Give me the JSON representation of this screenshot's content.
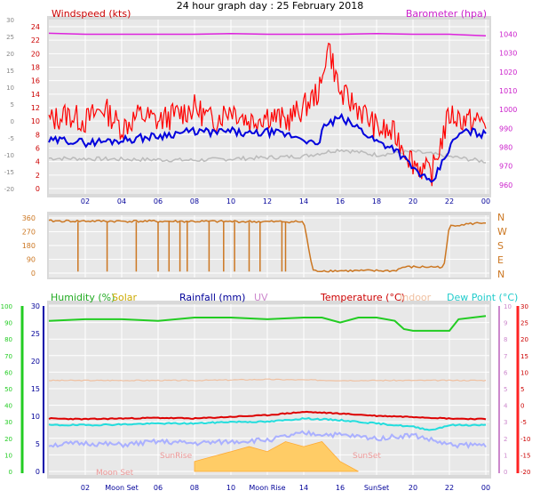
{
  "title": "24 hour graph day : 25 February 2018",
  "colors": {
    "windspeed": "#ff0000",
    "windavg": "#0000dd",
    "gust_bg": "#bbbbbb",
    "barometer": "#dd22dd",
    "direction": "#cc7722",
    "humidity": "#22cc22",
    "solar": "#ddbb00",
    "rainfall": "#0000aa",
    "uv": "#cc88cc",
    "temperature": "#dd0000",
    "indoor": "#f0c0a0",
    "dewpoint": "#22dddd",
    "uv_line": "#aab0ff",
    "plot_bg": "#e6e6e6"
  },
  "chart_data": [
    {
      "type": "line",
      "panel": "wind",
      "left_axis_label": "Windspeed (kts)",
      "right_axis_label": "Barometer (hpa)",
      "x_ticks": [
        "02",
        "04",
        "06",
        "08",
        "10",
        "12",
        "14",
        "16",
        "18",
        "20",
        "22",
        "00"
      ],
      "x_range": [
        0,
        24
      ],
      "y_left_ticks": [
        "0",
        "2",
        "4",
        "6",
        "8",
        "10",
        "12",
        "14",
        "16",
        "18",
        "20",
        "22",
        "24"
      ],
      "y_left_ticks_alt": [
        "-20",
        "-15",
        "-10",
        "-5",
        "0",
        "5",
        "10",
        "15",
        "20",
        "25",
        "30"
      ],
      "y_left_range": [
        0,
        24
      ],
      "y_right_ticks": [
        "960",
        "970",
        "980",
        "990",
        "1000",
        "1010",
        "1020",
        "1030",
        "1040"
      ],
      "y_right_range": [
        958,
        1044
      ],
      "series": [
        {
          "key": "windspeed",
          "x": [
            0,
            1,
            2,
            3,
            4,
            5,
            6,
            7,
            8,
            9,
            10,
            11,
            12,
            13,
            14,
            15,
            15.3,
            16,
            17,
            18,
            19,
            20,
            21,
            22,
            23,
            24
          ],
          "y": [
            10,
            11,
            10,
            12,
            9,
            11,
            10,
            11,
            12,
            10,
            12,
            10,
            11,
            10,
            12,
            15,
            22,
            14,
            12,
            9,
            8,
            4,
            2,
            11,
            10,
            10
          ]
        },
        {
          "key": "windavg",
          "x": [
            0,
            1,
            2,
            3,
            4,
            5,
            6,
            7,
            8,
            9,
            10,
            11,
            12,
            13,
            14,
            14.8,
            15,
            16,
            17,
            18,
            19,
            20,
            20.5,
            21,
            22,
            22.5,
            23,
            24
          ],
          "y": [
            7,
            7.2,
            6.8,
            7,
            7.2,
            7.5,
            7.8,
            8.2,
            8.5,
            8.3,
            8.5,
            8,
            8.4,
            8,
            7.5,
            6,
            9,
            10.5,
            9,
            7,
            6,
            3,
            2,
            0.5,
            6,
            8,
            8.5,
            8
          ]
        },
        {
          "key": "barometer",
          "x": [
            0,
            2,
            4,
            6,
            8,
            10,
            12,
            14,
            16,
            18,
            20,
            22,
            24
          ],
          "y": [
            1040.5,
            1040,
            1040,
            1040,
            1040,
            1040.3,
            1040,
            1040,
            1040,
            1040.3,
            1040,
            1040,
            1039.2
          ]
        }
      ]
    },
    {
      "type": "line",
      "panel": "direction",
      "y_ticks": [
        "0",
        "90",
        "180",
        "270",
        "360"
      ],
      "y_range": [
        0,
        360
      ],
      "compass_labels": [
        "N",
        "W",
        "S",
        "E",
        "N"
      ],
      "series": [
        {
          "key": "direction",
          "x": [
            0,
            14,
            14.5,
            19,
            19.5,
            21.7,
            22,
            24
          ],
          "y": [
            340,
            335,
            15,
            15,
            40,
            40,
            310,
            330
          ]
        }
      ]
    },
    {
      "type": "line",
      "panel": "temperature",
      "labels": {
        "humidity": "Humidity  (%)",
        "solar": "Solar",
        "rainfall": "Rainfall (mm)",
        "uv": "UV",
        "temperature": "Temperature (°C)",
        "indoor": "Indoor",
        "dewpoint": "Dew Point (°C)"
      },
      "y_humidity_ticks": [
        "0",
        "10",
        "20",
        "30",
        "40",
        "50",
        "60",
        "70",
        "80",
        "90",
        "100"
      ],
      "y_rain_ticks": [
        "0",
        "5",
        "10",
        "15",
        "20",
        "25",
        "30"
      ],
      "y_uv_ticks": [
        "0",
        "1",
        "2",
        "3",
        "4",
        "5",
        "6",
        "7",
        "8",
        "9",
        "10"
      ],
      "y_temp_ticks": [
        "-20",
        "-15",
        "-10",
        "-5",
        "0",
        "5",
        "10",
        "15",
        "20",
        "25",
        "30"
      ],
      "y_temp_range": [
        -20,
        30
      ],
      "series": [
        {
          "key": "humidity",
          "x": [
            0,
            2,
            4,
            6,
            8,
            10,
            12,
            14,
            15,
            16,
            17,
            18,
            19,
            19.5,
            20,
            20.5,
            22,
            22.5,
            24
          ],
          "y": [
            91,
            92,
            92,
            91,
            93,
            93,
            92,
            93,
            93,
            90,
            93,
            93,
            91,
            86,
            85,
            85,
            85,
            92,
            94
          ]
        },
        {
          "key": "indoor",
          "x": [
            0,
            4,
            8,
            12,
            16,
            20,
            24
          ],
          "y": [
            7.5,
            7.5,
            7.5,
            7.8,
            7.5,
            7.5,
            7.5
          ]
        },
        {
          "key": "temperature",
          "x": [
            0,
            2,
            4,
            6,
            8,
            10,
            12,
            14,
            16,
            18,
            20,
            22,
            24
          ],
          "y": [
            -4,
            -4.2,
            -4,
            -3.8,
            -4,
            -3.5,
            -3,
            -2,
            -2.5,
            -3.2,
            -3.5,
            -4,
            -4.2
          ]
        },
        {
          "key": "dewpoint",
          "x": [
            0,
            2,
            4,
            6,
            8,
            10,
            12,
            14,
            16,
            18,
            20,
            21,
            22,
            24
          ],
          "y": [
            -6,
            -6,
            -5.8,
            -5.5,
            -5.5,
            -5,
            -5,
            -4,
            -4.5,
            -5.5,
            -6.5,
            -7.5,
            -6,
            -6
          ]
        },
        {
          "key": "uv_line",
          "x": [
            0,
            2,
            4,
            6,
            8,
            10,
            12,
            14,
            16,
            18,
            20,
            22,
            24
          ],
          "y": [
            -12,
            -11.5,
            -12,
            -11,
            -11.5,
            -11,
            -10.5,
            -8.5,
            -9,
            -10,
            -9,
            -12,
            -12
          ]
        },
        {
          "key": "solar",
          "x": [
            8,
            9,
            10,
            11,
            12,
            13,
            14,
            15,
            16,
            17
          ],
          "y": [
            1,
            1.5,
            2,
            2.5,
            2,
            3,
            2.5,
            3,
            1,
            0
          ]
        }
      ],
      "annotations": [
        "Moon Set",
        "SunRise",
        "SunSet",
        "Moon Rise"
      ],
      "bottom_ticks": [
        "02",
        "Moon Set",
        "06",
        "08",
        "10",
        "Moon Rise",
        "14",
        "16",
        "SunSet",
        "20",
        "22",
        "00"
      ]
    }
  ]
}
